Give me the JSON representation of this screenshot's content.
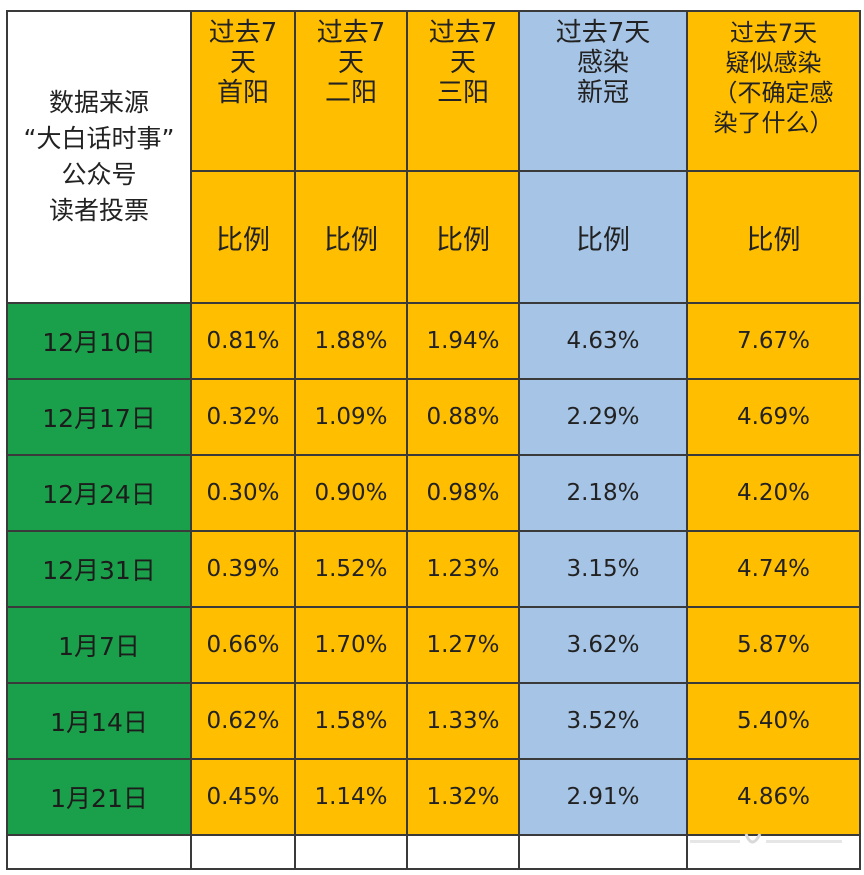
{
  "source_lines": [
    "数据来源",
    "“大白话时事”",
    "公众号",
    "读者投票"
  ],
  "columns": [
    {
      "header_lines": [
        "过去7",
        "天",
        "首阳"
      ],
      "sub": "比例",
      "color": "#ffbe00"
    },
    {
      "header_lines": [
        "过去7",
        "天",
        "二阳"
      ],
      "sub": "比例",
      "color": "#ffbe00"
    },
    {
      "header_lines": [
        "过去7",
        "天",
        "三阳"
      ],
      "sub": "比例",
      "color": "#ffbe00"
    },
    {
      "header_lines": [
        "过去7天",
        "感染",
        "新冠"
      ],
      "sub": "比例",
      "color": "#a6c4e6"
    },
    {
      "header_lines": [
        "过去7天",
        "疑似感染",
        "（不确定感",
        "染了什么）"
      ],
      "sub": "比例",
      "color": "#ffbe00"
    }
  ],
  "rows": [
    {
      "date": "12月10日",
      "values": [
        "0.81%",
        "1.88%",
        "1.94%",
        "4.63%",
        "7.67%"
      ]
    },
    {
      "date": "12月17日",
      "values": [
        "0.32%",
        "1.09%",
        "0.88%",
        "2.29%",
        "4.69%"
      ]
    },
    {
      "date": "12月24日",
      "values": [
        "0.30%",
        "0.90%",
        "0.98%",
        "2.18%",
        "4.20%"
      ]
    },
    {
      "date": "12月31日",
      "values": [
        "0.39%",
        "1.52%",
        "1.23%",
        "3.15%",
        "4.74%"
      ]
    },
    {
      "date": "1月7日",
      "values": [
        "0.66%",
        "1.70%",
        "1.27%",
        "3.62%",
        "5.87%"
      ]
    },
    {
      "date": "1月14日",
      "values": [
        "0.62%",
        "1.58%",
        "1.33%",
        "3.52%",
        "5.40%"
      ]
    },
    {
      "date": "1月21日",
      "values": [
        "0.45%",
        "1.14%",
        "1.32%",
        "2.91%",
        "4.86%"
      ]
    }
  ],
  "colors": {
    "yellow": "#ffbe00",
    "blue": "#a6c4e6",
    "green": "#1aa04a"
  }
}
